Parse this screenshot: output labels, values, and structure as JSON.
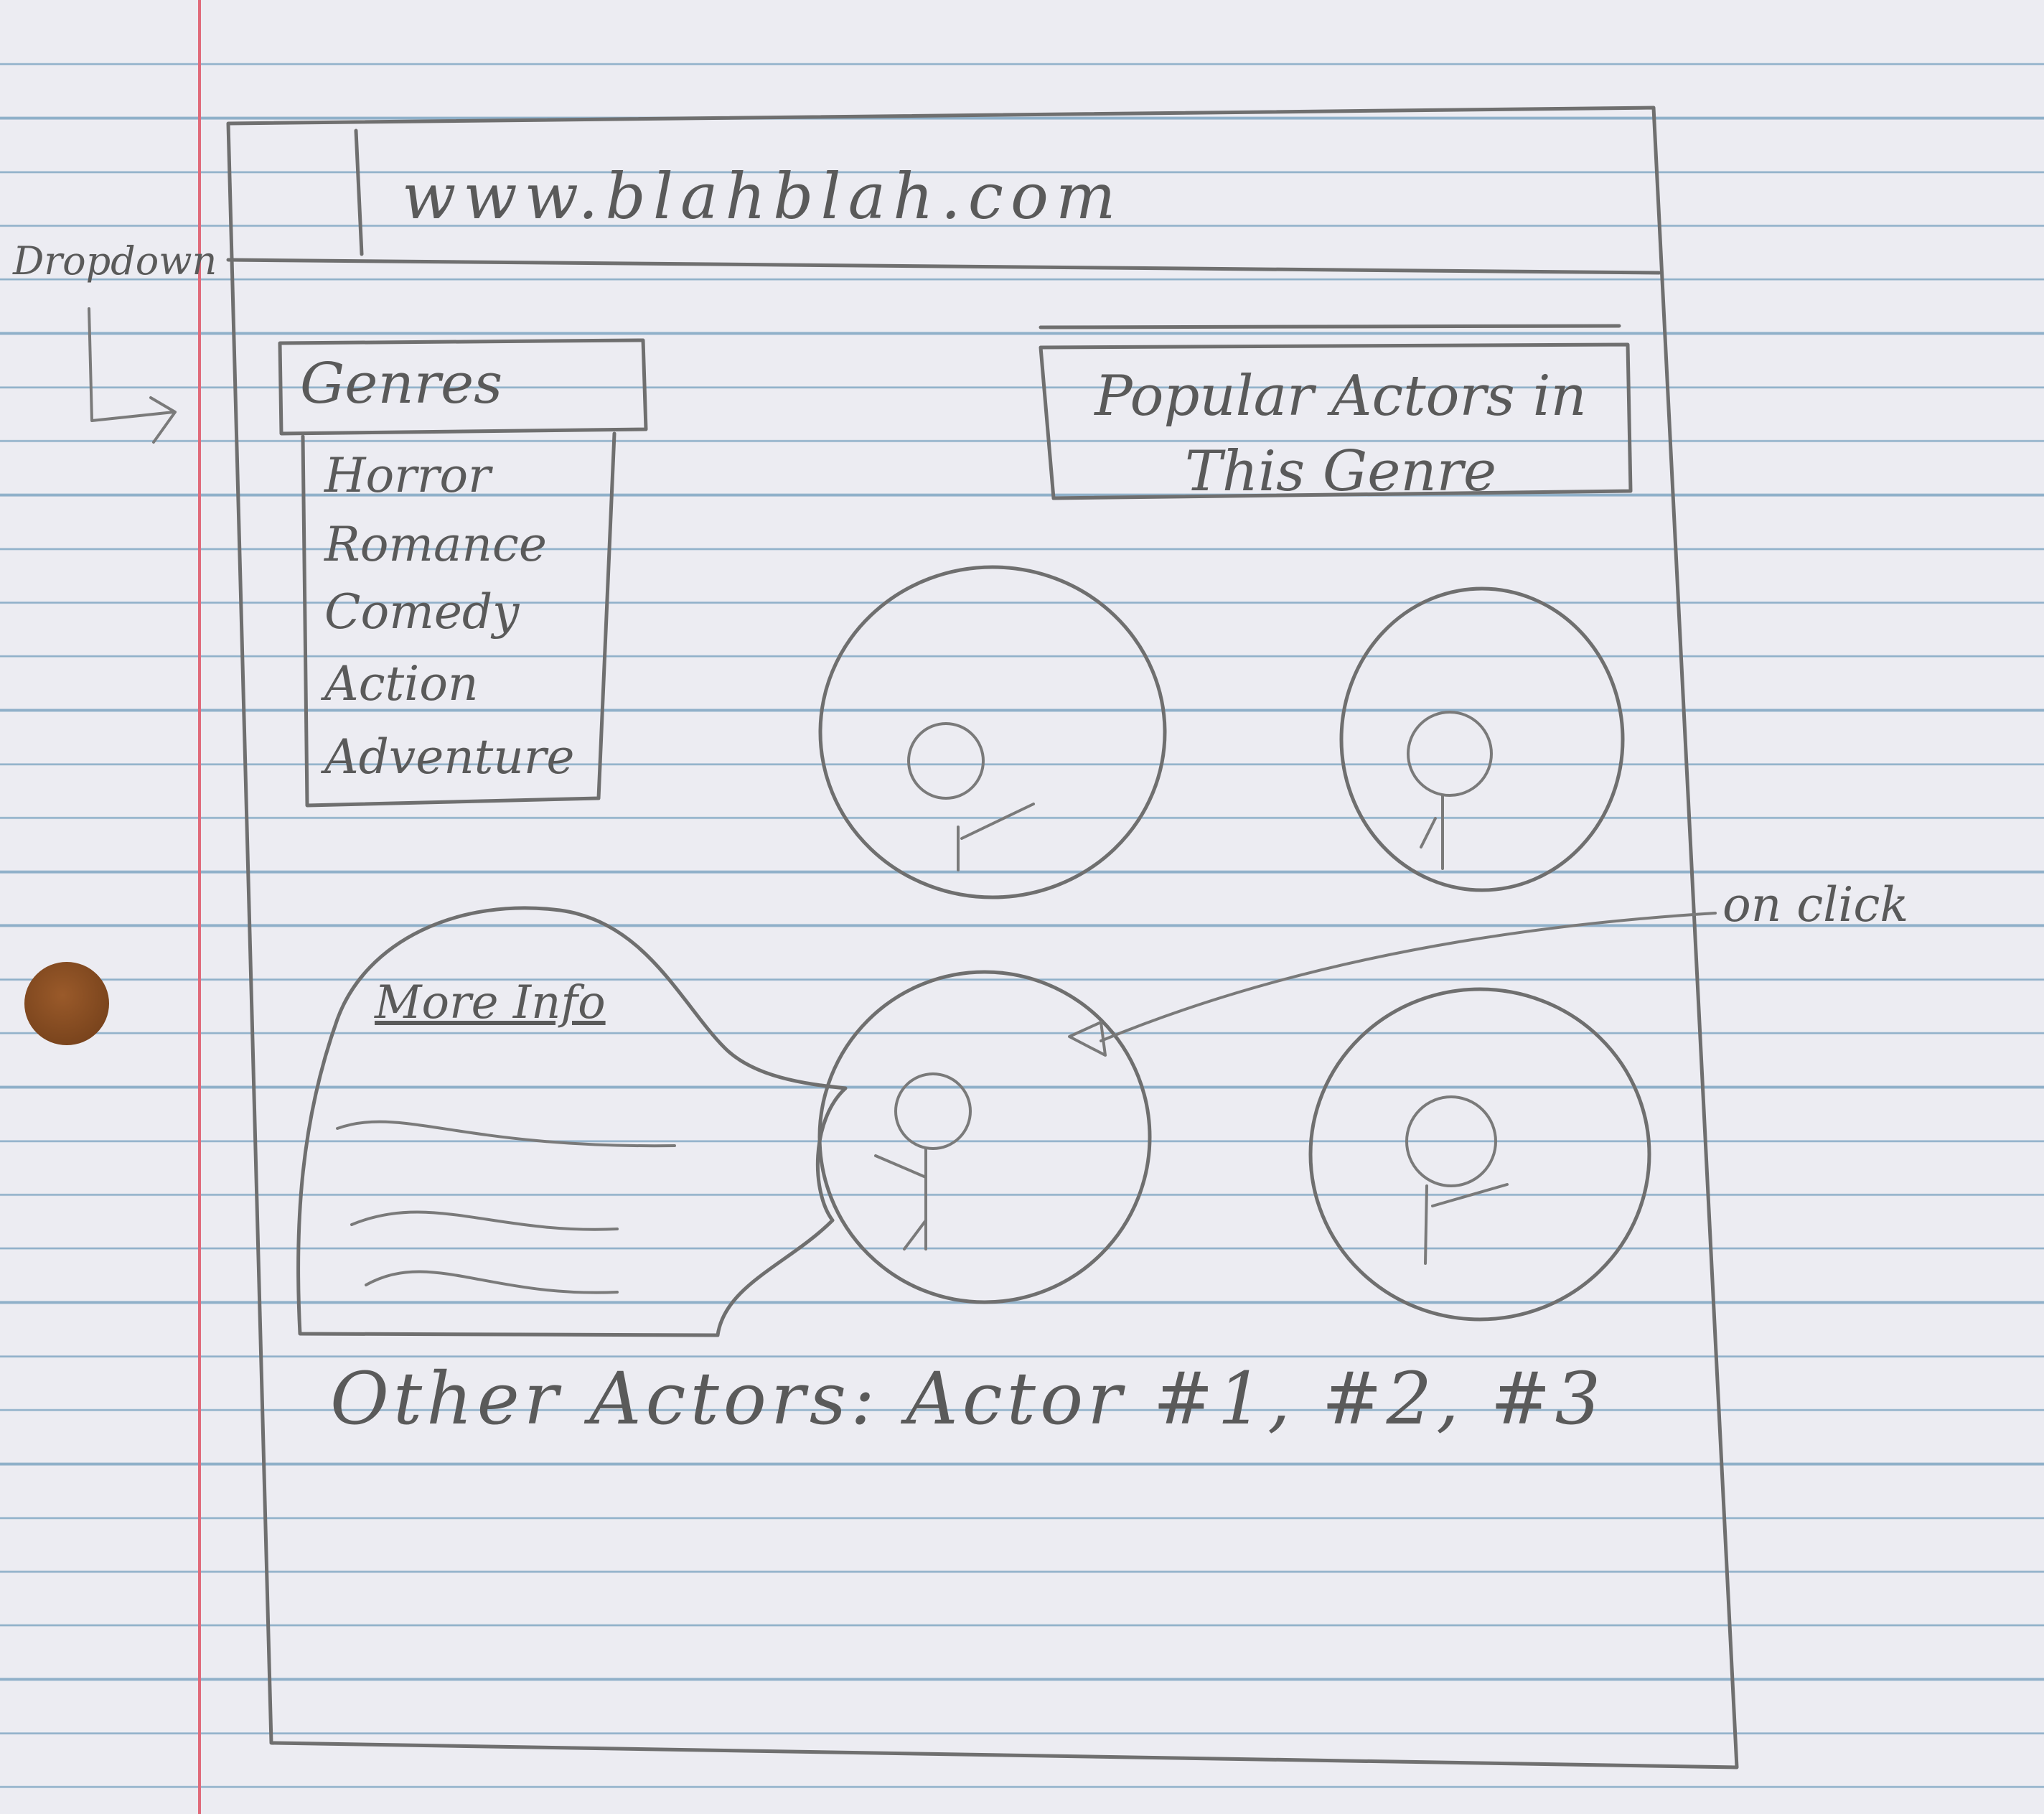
{
  "browser": {
    "url": "www.blahblah.com"
  },
  "annotations": {
    "dropdown": "Dropdown",
    "on_click": "on click"
  },
  "genres": {
    "title": "Genres",
    "items": [
      "Horror",
      "Romance",
      "Comedy",
      "Action",
      "Adventure"
    ]
  },
  "popular_actors": {
    "title": "Popular Actors in This Genre"
  },
  "more_info": {
    "title": "More Info"
  },
  "other_actors": {
    "label": "Other Actors: Actor #1, #2, #3"
  },
  "colors": {
    "paper": "#ececf2",
    "rule_line": "#8fb0c9",
    "margin_line": "#e06a7a",
    "pencil": "#6f6f6f",
    "punch_hole": "#7a4420"
  }
}
